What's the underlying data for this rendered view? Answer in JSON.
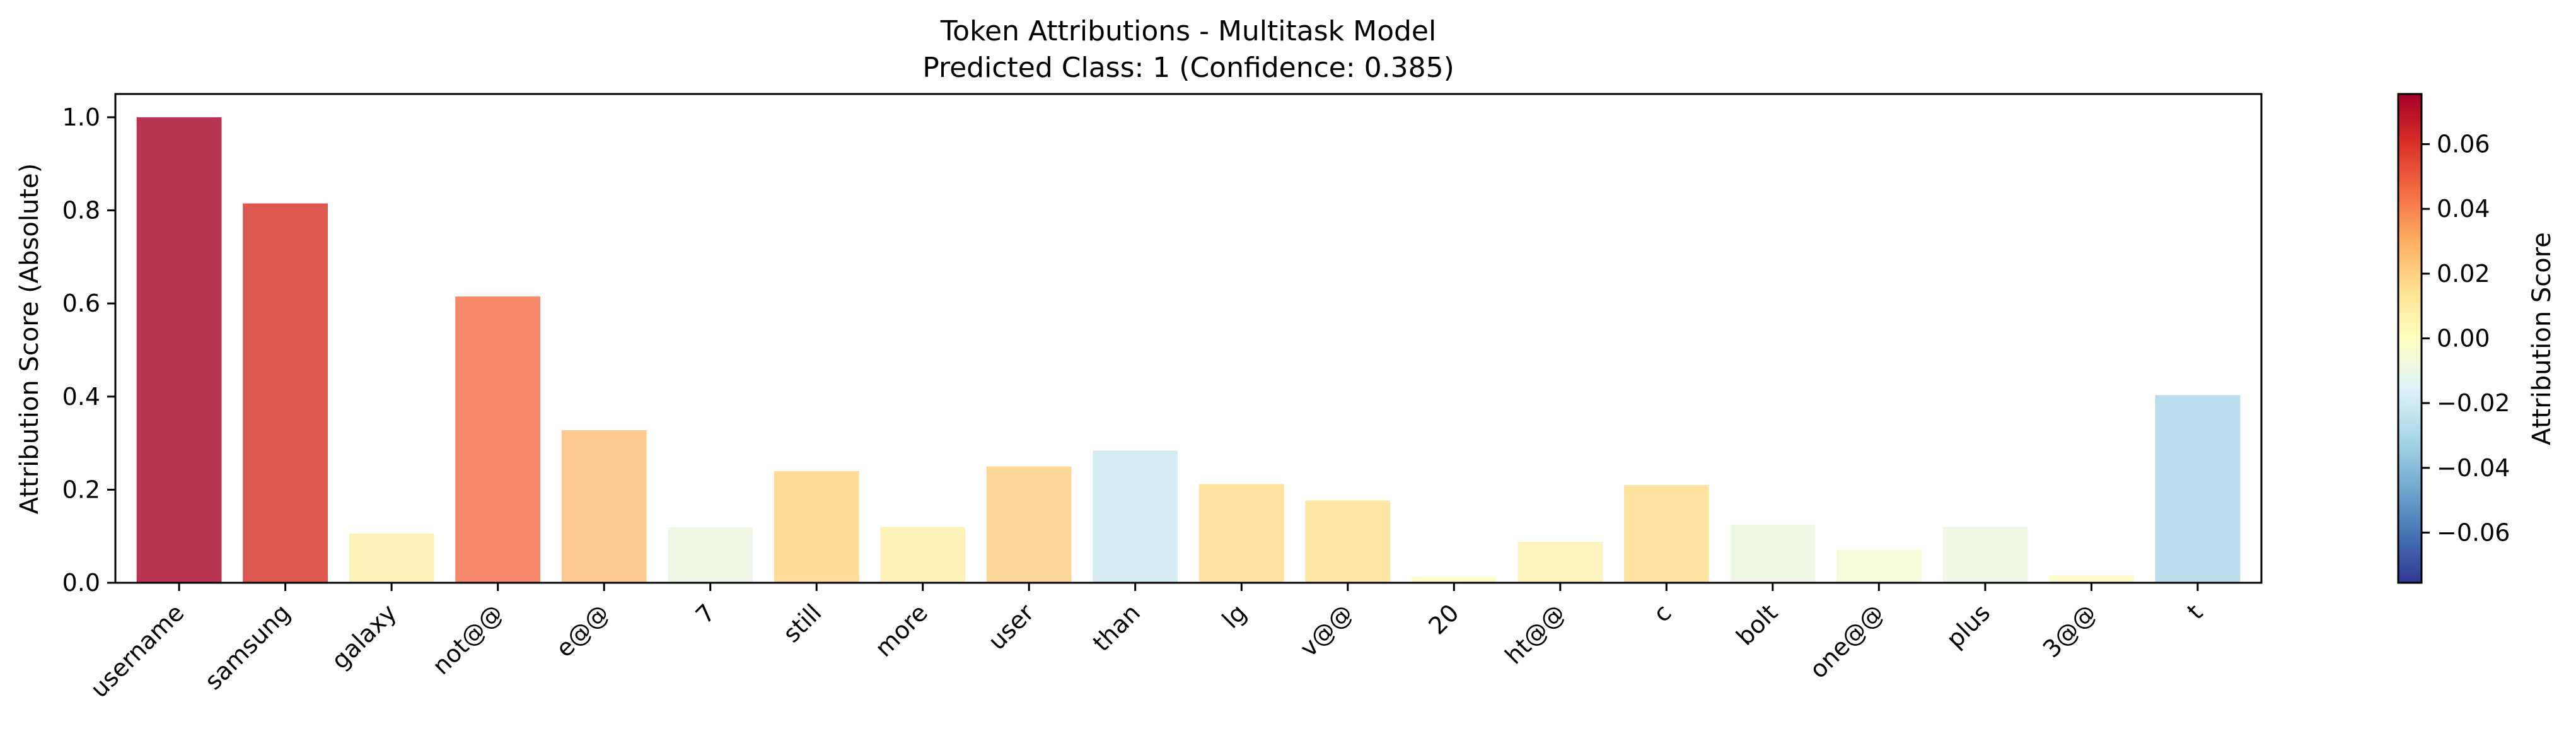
{
  "chart_data": [
    {
      "type": "bar",
      "title": "Token Attributions - Multitask Model",
      "subtitle": "Predicted Class: 1 (Confidence: 0.385)",
      "xlabel": "",
      "ylabel": "Attribution Score (Absolute)",
      "ylim": [
        0,
        1.05
      ],
      "yticks": [
        "0.0",
        "0.2",
        "0.4",
        "0.6",
        "0.8",
        "1.0"
      ],
      "categories": [
        "username",
        "samsung",
        "galaxy",
        "not@@",
        "e@@",
        "7",
        "still",
        "more",
        "user",
        "than",
        "lg",
        "v@@",
        "20",
        "ht@@",
        "c",
        "bolt",
        "one@@",
        "plus",
        "3@@",
        "t"
      ],
      "values": [
        1.0,
        0.815,
        0.106,
        0.615,
        0.328,
        0.119,
        0.24,
        0.12,
        0.25,
        0.284,
        0.212,
        0.177,
        0.013,
        0.088,
        0.21,
        0.125,
        0.071,
        0.12,
        0.017,
        0.403
      ],
      "signed_scores": [
        0.0755,
        0.0615,
        0.008,
        0.0465,
        0.0248,
        -0.009,
        0.0181,
        0.0091,
        0.0189,
        -0.0214,
        0.016,
        0.0134,
        0.001,
        0.0066,
        0.0159,
        -0.0094,
        -0.0054,
        -0.0091,
        0.0013,
        -0.0304
      ],
      "colors": [
        "#b93352",
        "#de5650",
        "#fef0b9",
        "#f5896a",
        "#fdcb8f",
        "#f0f7e6",
        "#fedb99",
        "#fdf1b8",
        "#fdd797",
        "#d6ecf2",
        "#fee3a0",
        "#fee7a4",
        "#fefbd0",
        "#fef4be",
        "#fee3a1",
        "#eff7e6",
        "#f6fbdb",
        "#f0f7e6",
        "#fefccc",
        "#bcdeec"
      ],
      "grid": false,
      "legend": "none"
    },
    {
      "type": "colorbar",
      "label": "Attribution Score",
      "range": [
        -0.0755,
        0.0755
      ],
      "ticks": [
        "0.06",
        "0.04",
        "0.02",
        "0.00",
        "−0.02",
        "−0.04",
        "−0.06"
      ],
      "tick_values": [
        0.06,
        0.04,
        0.02,
        0.0,
        -0.02,
        -0.04,
        -0.06
      ],
      "colormap": "RdYlBu_r",
      "stops": [
        "#313695",
        "#4575b4",
        "#74add1",
        "#abd9e9",
        "#e0f3f8",
        "#ffffbf",
        "#fee090",
        "#fdae61",
        "#f46d43",
        "#d73027",
        "#a50026"
      ]
    }
  ]
}
